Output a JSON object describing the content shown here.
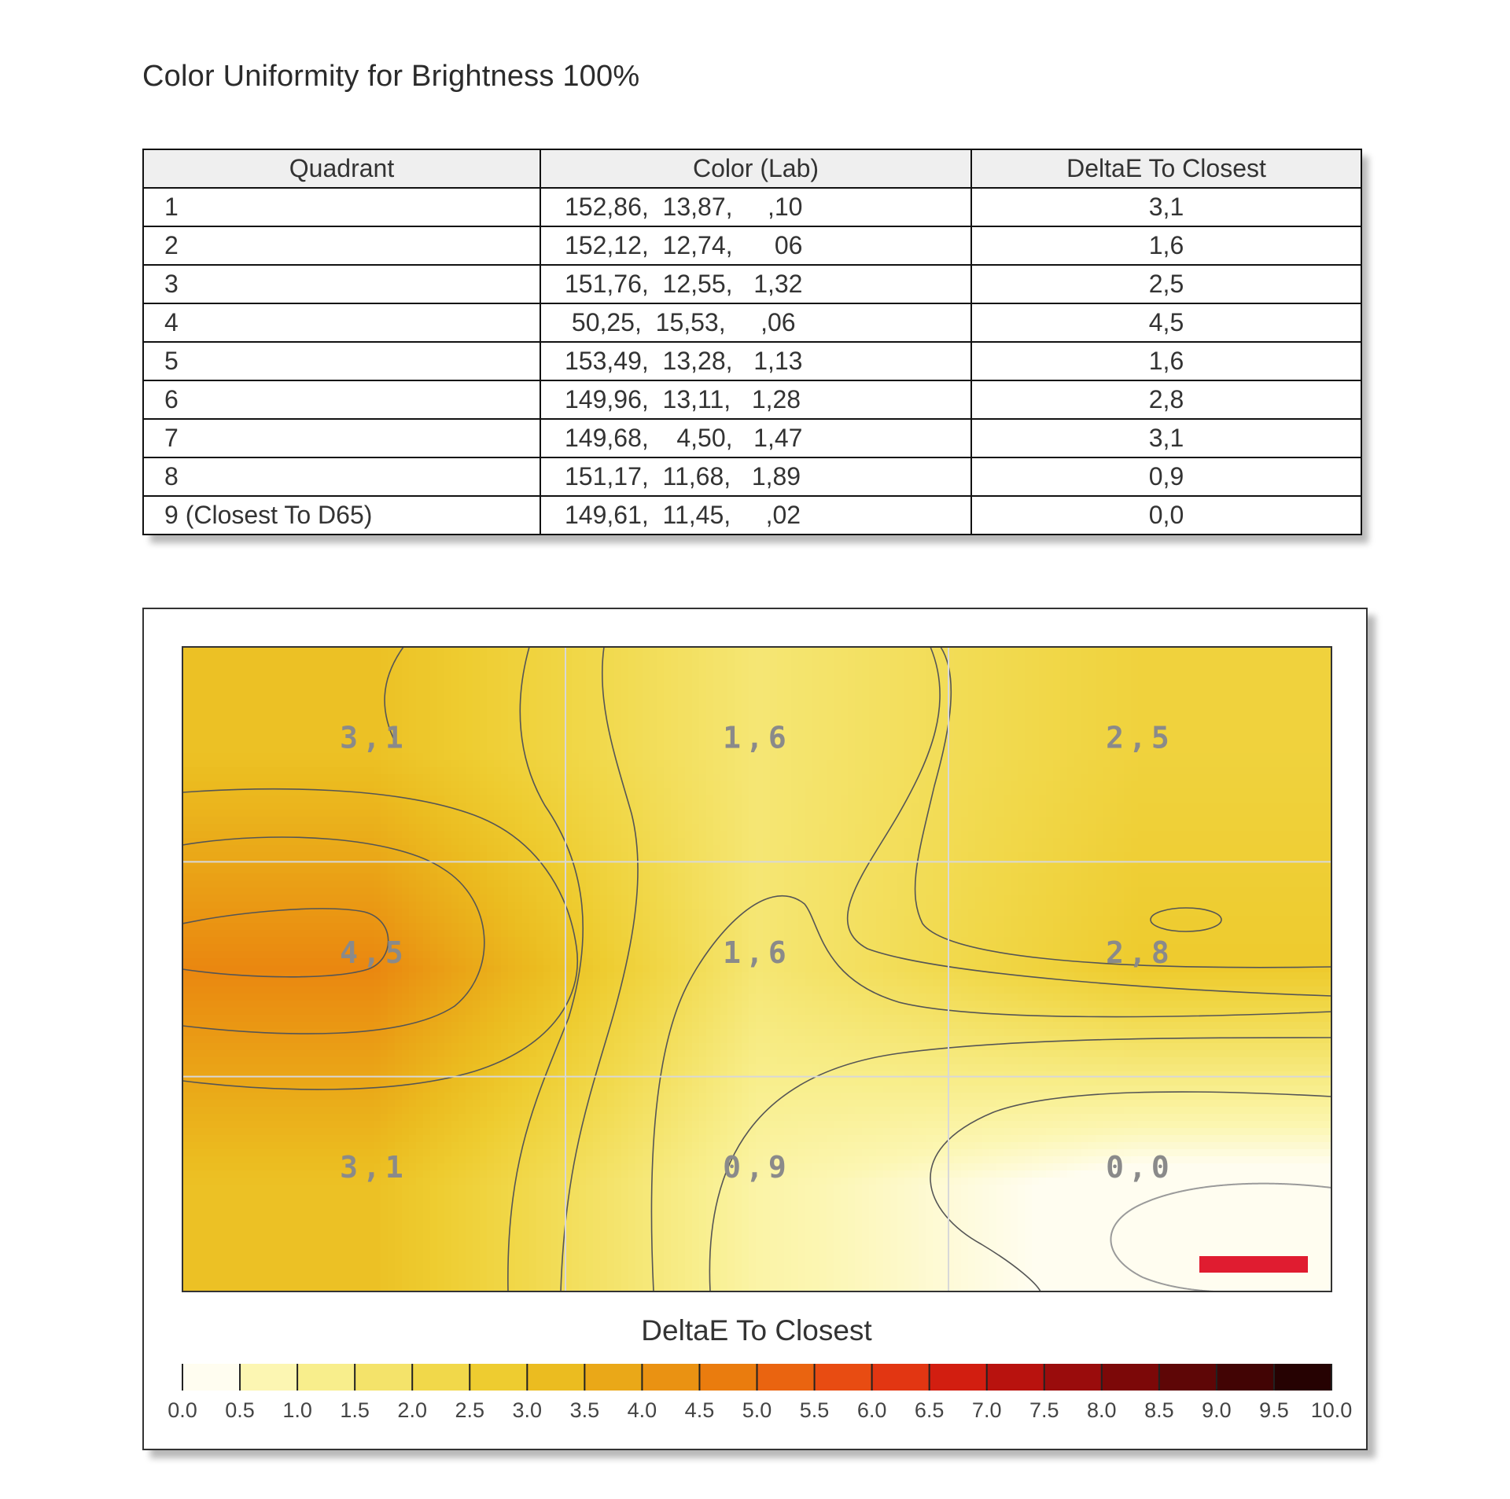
{
  "title": "Color Uniformity for Brightness 100%",
  "table": {
    "headers": [
      "Quadrant",
      "Color (Lab)",
      "DeltaE To Closest"
    ],
    "rows": [
      {
        "quadrant": "1",
        "lab": "152,86,  13,87,     ,10",
        "delta": "3,1"
      },
      {
        "quadrant": "2",
        "lab": "152,12,  12,74,      06",
        "delta": "1,6"
      },
      {
        "quadrant": "3",
        "lab": "151,76,  12,55,   1,32",
        "delta": "2,5"
      },
      {
        "quadrant": "4",
        "lab": " 50,25,  15,53,     ,06",
        "delta": "4,5"
      },
      {
        "quadrant": "5",
        "lab": "153,49,  13,28,   1,13",
        "delta": "1,6"
      },
      {
        "quadrant": "6",
        "lab": "149,96,  13,11,   1,28",
        "delta": "2,8"
      },
      {
        "quadrant": "7",
        "lab": "149,68,    4,50,   1,47",
        "delta": "3,1"
      },
      {
        "quadrant": "8",
        "lab": "151,17,  11,68,   1,89",
        "delta": "0,9"
      },
      {
        "quadrant": "9 (Closest To D65)",
        "lab": "149,61,  11,45,     ,02",
        "delta": "0,0"
      }
    ]
  },
  "chart_data": {
    "type": "heatmap",
    "grid": {
      "rows": 3,
      "cols": 3
    },
    "cell_labels": [
      [
        "3,1",
        "1,6",
        "2,5"
      ],
      [
        "4,5",
        "1,6",
        "2,8"
      ],
      [
        "3,1",
        "0,9",
        "0,0"
      ]
    ],
    "values": [
      [
        3.1,
        1.6,
        2.5
      ],
      [
        4.5,
        1.6,
        2.8
      ],
      [
        3.1,
        0.9,
        0.0
      ]
    ],
    "closest_cell": {
      "row": 3,
      "col": 3
    },
    "scale": {
      "title": "DeltaE To Closest",
      "min": 0.0,
      "max": 10.0,
      "step": 0.5,
      "tick_labels": [
        "0.0",
        "0.5",
        "1.0",
        "1.5",
        "2.0",
        "2.5",
        "3.0",
        "3.5",
        "4.0",
        "4.5",
        "5.0",
        "5.5",
        "6.0",
        "6.5",
        "7.0",
        "7.5",
        "8.0",
        "8.5",
        "9.0",
        "9.5",
        "10.0"
      ],
      "colors": [
        "#fffdf0",
        "#fcf6b2",
        "#f8ee8c",
        "#f4e36a",
        "#f1d84a",
        "#eecc30",
        "#ebbc20",
        "#eaa818",
        "#ea9212",
        "#ea7c0e",
        "#ea6410",
        "#e84c12",
        "#e23612",
        "#d21e10",
        "#b8120e",
        "#9a0c0c",
        "#7c0808",
        "#5e0606",
        "#420404",
        "#260202"
      ]
    },
    "colors": {
      "marker": "#e01c30",
      "contour": "#555555"
    }
  }
}
